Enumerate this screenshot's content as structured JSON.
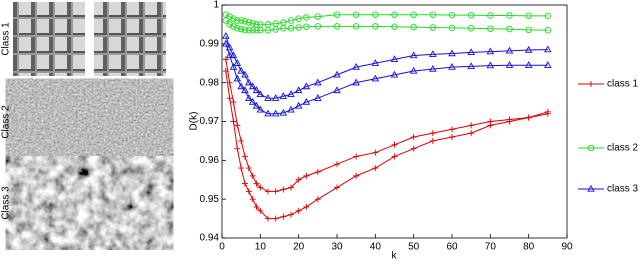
{
  "chart_data": {
    "type": "line",
    "image_labels": [
      "Class 1",
      "Class 2",
      "Class 3"
    ],
    "xlabel": "k",
    "ylabel": "D(k)",
    "x": [
      1,
      2,
      3,
      4,
      5,
      6,
      7,
      8,
      9,
      10,
      12,
      14,
      16,
      18,
      20,
      22,
      25,
      30,
      35,
      40,
      45,
      50,
      55,
      60,
      65,
      70,
      75,
      80,
      85
    ],
    "xlim": [
      0,
      90
    ],
    "xticks": [
      0,
      10,
      20,
      30,
      40,
      50,
      60,
      70,
      80,
      90
    ],
    "ylim": [
      0.94,
      1
    ],
    "yticks": [
      0.94,
      0.95,
      0.96,
      0.97,
      0.98,
      0.99,
      1
    ],
    "series": [
      {
        "name": "class 1",
        "color": "#e00000",
        "marker": "+",
        "curves": [
          [
            0.986,
            0.98,
            0.975,
            0.969,
            0.965,
            0.961,
            0.958,
            0.956,
            0.954,
            0.953,
            0.952,
            0.952,
            0.9525,
            0.953,
            0.955,
            0.956,
            0.957,
            0.959,
            0.961,
            0.962,
            0.964,
            0.966,
            0.967,
            0.968,
            0.969,
            0.97,
            0.9705,
            0.971,
            0.9725
          ],
          [
            0.983,
            0.976,
            0.97,
            0.963,
            0.958,
            0.954,
            0.952,
            0.95,
            0.948,
            0.947,
            0.945,
            0.945,
            0.9455,
            0.946,
            0.947,
            0.948,
            0.95,
            0.953,
            0.956,
            0.958,
            0.961,
            0.963,
            0.965,
            0.966,
            0.967,
            0.969,
            0.97,
            0.971,
            0.972
          ]
        ]
      },
      {
        "name": "class 2",
        "color": "#22dd22",
        "marker": "o",
        "curves": [
          [
            0.9975,
            0.997,
            0.9965,
            0.996,
            0.996,
            0.9958,
            0.9955,
            0.9953,
            0.995,
            0.995,
            0.995,
            0.9952,
            0.9955,
            0.996,
            0.9965,
            0.9968,
            0.997,
            0.9975,
            0.9975,
            0.9975,
            0.9975,
            0.9975,
            0.9975,
            0.9974,
            0.9974,
            0.9973,
            0.9973,
            0.9972,
            0.9972
          ],
          [
            0.996,
            0.995,
            0.9945,
            0.994,
            0.9938,
            0.9936,
            0.9935,
            0.9935,
            0.9935,
            0.9935,
            0.9935,
            0.9937,
            0.994,
            0.994,
            0.9942,
            0.9944,
            0.9945,
            0.9945,
            0.9945,
            0.9945,
            0.9944,
            0.9943,
            0.9942,
            0.9941,
            0.994,
            0.9939,
            0.9938,
            0.9936,
            0.9935
          ]
        ]
      },
      {
        "name": "class 3",
        "color": "#1010e0",
        "marker": "^",
        "curves": [
          [
            0.992,
            0.989,
            0.987,
            0.985,
            0.983,
            0.982,
            0.98,
            0.979,
            0.978,
            0.977,
            0.976,
            0.976,
            0.9765,
            0.977,
            0.978,
            0.979,
            0.98,
            0.982,
            0.984,
            0.985,
            0.986,
            0.987,
            0.9873,
            0.9875,
            0.9878,
            0.988,
            0.9882,
            0.9884,
            0.9885
          ],
          [
            0.99,
            0.987,
            0.984,
            0.981,
            0.979,
            0.978,
            0.976,
            0.975,
            0.974,
            0.973,
            0.972,
            0.972,
            0.9722,
            0.973,
            0.974,
            0.975,
            0.976,
            0.978,
            0.98,
            0.981,
            0.982,
            0.983,
            0.9835,
            0.984,
            0.9842,
            0.9844,
            0.9845,
            0.9845,
            0.9845
          ]
        ]
      }
    ]
  }
}
